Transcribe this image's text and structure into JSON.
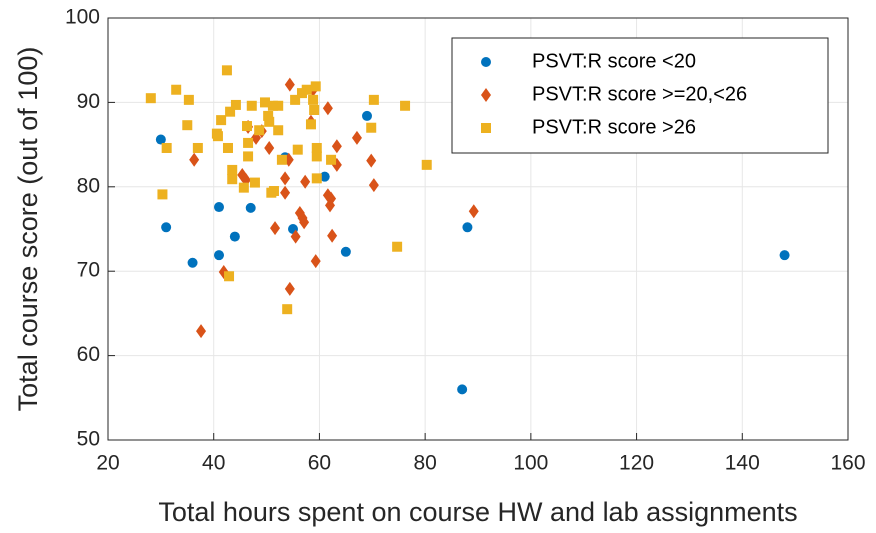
{
  "chart_data": {
    "type": "scatter",
    "xlabel": "Total hours spent on course HW and lab assignments",
    "ylabel": "Total course score (out of 100)",
    "xlim": [
      20,
      160
    ],
    "xticks": [
      20,
      40,
      60,
      80,
      100,
      120,
      140,
      160
    ],
    "ylim": [
      50,
      100
    ],
    "yticks": [
      50,
      60,
      70,
      80,
      90,
      100
    ],
    "grid": true,
    "legend": "upper right",
    "series": [
      {
        "name": "PSVT:R score <20",
        "color": "#0072bd",
        "marker": "circle",
        "x": [
          30,
          31,
          36,
          41,
          41,
          44,
          47,
          53.5,
          55,
          61,
          65,
          69,
          87,
          88,
          148
        ],
        "values": [
          85.6,
          75.2,
          71,
          77.6,
          71.9,
          74.1,
          77.5,
          83.5,
          75,
          81.2,
          72.3,
          88.4,
          56,
          75.2,
          71.9
        ]
      },
      {
        "name": "PSVT:R score >=20,<26",
        "color": "#d95319",
        "marker": "diamond",
        "x": [
          36.3,
          37.6,
          41.9,
          45.4,
          46.1,
          46.5,
          49.1,
          50.5,
          51.6,
          48,
          53.5,
          53.5,
          54.4,
          54.2,
          54.4,
          55.5,
          56.3,
          56.8,
          57.1,
          57.3,
          58.8,
          58.4,
          59.3,
          61.6,
          61.6,
          62,
          62.2,
          62.4,
          63.3,
          63.3,
          67.1,
          69.8,
          70.3,
          89.2
        ],
        "values": [
          83.2,
          62.9,
          69.9,
          81.4,
          80.8,
          87.1,
          86.6,
          84.6,
          75.1,
          85.8,
          81,
          79.3,
          92.1,
          83.2,
          67.9,
          74.1,
          76.9,
          76.3,
          75.8,
          80.6,
          91.5,
          87.7,
          71.2,
          89.3,
          79,
          77.8,
          78.6,
          74.2,
          84.8,
          82.6,
          85.8,
          83.1,
          80.2,
          77.1
        ]
      },
      {
        "name": "PSVT:R score >26",
        "color": "#edb120",
        "marker": "square",
        "x": [
          28.1,
          30.3,
          31.1,
          32.9,
          35,
          35.3,
          37,
          40.6,
          40.8,
          41.4,
          42.5,
          42.7,
          43.1,
          43.5,
          43.5,
          42.9,
          44.2,
          45.7,
          46.3,
          46.5,
          46.5,
          47.2,
          47.8,
          48.6,
          49.7,
          50.3,
          50.5,
          50.9,
          51.2,
          51.4,
          52.2,
          52.2,
          52.9,
          53.9,
          55.4,
          55.9,
          56.7,
          57.6,
          58.4,
          58.8,
          59,
          59.3,
          59.5,
          59.5,
          59.5,
          62.2,
          69.8,
          70.3,
          74.7,
          76.2,
          80.3
        ],
        "values": [
          90.5,
          79.1,
          84.6,
          91.5,
          87.3,
          90.3,
          84.6,
          86.3,
          86,
          87.9,
          93.8,
          84.6,
          88.9,
          82,
          80.9,
          69.4,
          89.7,
          79.9,
          87.2,
          85.2,
          83.6,
          89.6,
          80.5,
          86.7,
          90,
          88.4,
          87.7,
          79.3,
          89.6,
          79.5,
          86.7,
          89.6,
          83.2,
          65.5,
          90.3,
          84.4,
          91.1,
          91.5,
          87.4,
          90.3,
          89.1,
          91.9,
          84.6,
          83.6,
          81,
          83.2,
          87,
          90.3,
          72.9,
          89.6,
          82.6
        ]
      }
    ]
  }
}
